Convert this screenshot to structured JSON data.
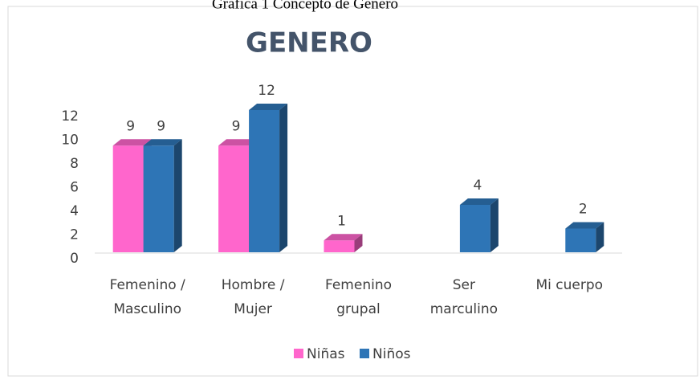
{
  "caption": "Gráfica 1 Concepto de Género",
  "chart_data": {
    "type": "bar3d",
    "title": "GENERO",
    "categories": [
      [
        "Femenino /",
        "Masculino"
      ],
      [
        "Hombre /",
        "Mujer"
      ],
      [
        "Femenino",
        "grupal"
      ],
      [
        "Ser",
        "marculino"
      ],
      [
        "Mi cuerpo"
      ]
    ],
    "series": [
      {
        "name": "Niñas",
        "color": "#ff66cc",
        "values": [
          9,
          9,
          1,
          null,
          null
        ]
      },
      {
        "name": "Niños",
        "color": "#2e75b6",
        "values": [
          9,
          12,
          null,
          4,
          2
        ]
      }
    ],
    "ylim": [
      0,
      12
    ],
    "yticks": [
      0,
      2,
      4,
      6,
      8,
      10,
      12
    ],
    "legend": "bottom"
  }
}
